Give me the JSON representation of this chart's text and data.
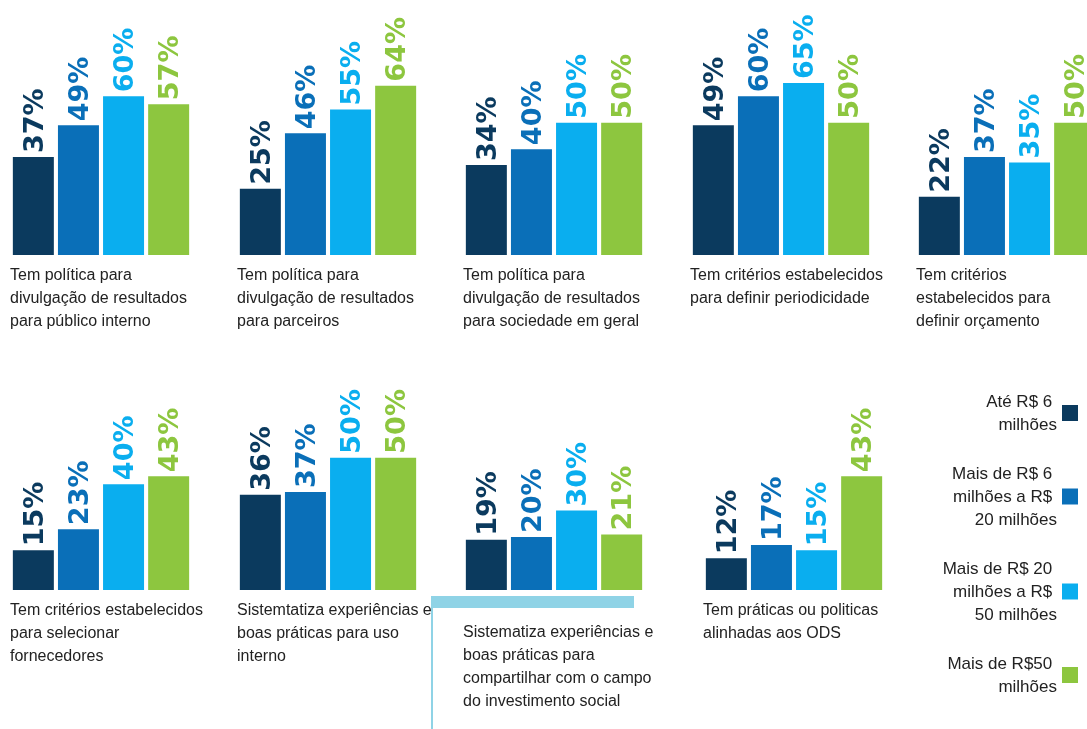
{
  "chart_data": [
    {
      "type": "bar",
      "xlabel": "Tem política para divulgação de resultados para público interno",
      "categories": [
        null
      ],
      "tick_labels": false,
      "legend": false,
      "series": [
        {
          "color": "#0b3a5e",
          "values": [
            37
          ],
          "value_labels": [
            "37%"
          ]
        },
        {
          "color": "#0a6fb8",
          "values": [
            49
          ],
          "value_labels": [
            "49%"
          ]
        },
        {
          "color": "#0aaeef",
          "values": [
            60
          ],
          "value_labels": [
            "60%"
          ]
        },
        {
          "color": "#8dc63f",
          "values": [
            57
          ],
          "value_labels": [
            "57%"
          ]
        }
      ]
    },
    {
      "type": "bar",
      "xlabel": "Tem política para divulgação de resultados para parceiros",
      "categories": [
        null
      ],
      "tick_labels": false,
      "legend": false,
      "series": [
        {
          "color": "#0b3a5e",
          "values": [
            25
          ],
          "value_labels": [
            "25%"
          ]
        },
        {
          "color": "#0a6fb8",
          "values": [
            46
          ],
          "value_labels": [
            "46%"
          ]
        },
        {
          "color": "#0aaeef",
          "values": [
            55
          ],
          "value_labels": [
            "55%"
          ]
        },
        {
          "color": "#8dc63f",
          "values": [
            64
          ],
          "value_labels": [
            "64%"
          ]
        }
      ]
    },
    {
      "type": "bar",
      "xlabel": "Tem política para divulgação de resultados para sociedade em geral",
      "categories": [
        null
      ],
      "tick_labels": false,
      "legend": false,
      "series": [
        {
          "color": "#0b3a5e",
          "values": [
            34
          ],
          "value_labels": [
            "34%"
          ]
        },
        {
          "color": "#0a6fb8",
          "values": [
            40
          ],
          "value_labels": [
            "40%"
          ]
        },
        {
          "color": "#0aaeef",
          "values": [
            50
          ],
          "value_labels": [
            "50%"
          ]
        },
        {
          "color": "#8dc63f",
          "values": [
            50
          ],
          "value_labels": [
            "50%"
          ]
        }
      ]
    },
    {
      "type": "bar",
      "xlabel": "Tem critérios estabelecidos para definir periodicidade",
      "categories": [
        null
      ],
      "tick_labels": false,
      "legend": false,
      "series": [
        {
          "color": "#0b3a5e",
          "values": [
            49
          ],
          "value_labels": [
            "49%"
          ]
        },
        {
          "color": "#0a6fb8",
          "values": [
            60
          ],
          "value_labels": [
            "60%"
          ]
        },
        {
          "color": "#0aaeef",
          "values": [
            65
          ],
          "value_labels": [
            "65%"
          ]
        },
        {
          "color": "#8dc63f",
          "values": [
            50
          ],
          "value_labels": [
            "50%"
          ]
        }
      ]
    },
    {
      "type": "bar",
      "xlabel": "Tem critérios estabelecidos para definir orçamento",
      "categories": [
        null
      ],
      "tick_labels": false,
      "legend": false,
      "series": [
        {
          "color": "#0b3a5e",
          "values": [
            22
          ],
          "value_labels": [
            "22%"
          ]
        },
        {
          "color": "#0a6fb8",
          "values": [
            37
          ],
          "value_labels": [
            "37%"
          ]
        },
        {
          "color": "#0aaeef",
          "values": [
            35
          ],
          "value_labels": [
            "35%"
          ]
        },
        {
          "color": "#8dc63f",
          "values": [
            50
          ],
          "value_labels": [
            "50%"
          ]
        }
      ]
    },
    {
      "type": "bar",
      "xlabel": "Tem critérios estabelecidos para selecionar fornecedores",
      "categories": [
        null
      ],
      "tick_labels": false,
      "legend": false,
      "series": [
        {
          "color": "#0b3a5e",
          "values": [
            15
          ],
          "value_labels": [
            "15%"
          ]
        },
        {
          "color": "#0a6fb8",
          "values": [
            23
          ],
          "value_labels": [
            "23%"
          ]
        },
        {
          "color": "#0aaeef",
          "values": [
            40
          ],
          "value_labels": [
            "40%"
          ]
        },
        {
          "color": "#8dc63f",
          "values": [
            43
          ],
          "value_labels": [
            "43%"
          ]
        }
      ]
    },
    {
      "type": "bar",
      "xlabel": "Sistemtatiza experiências e boas práticas para uso interno",
      "categories": [
        null
      ],
      "tick_labels": false,
      "legend": false,
      "series": [
        {
          "color": "#0b3a5e",
          "values": [
            36
          ],
          "value_labels": [
            "36%"
          ]
        },
        {
          "color": "#0a6fb8",
          "values": [
            37
          ],
          "value_labels": [
            "37%"
          ]
        },
        {
          "color": "#0aaeef",
          "values": [
            50
          ],
          "value_labels": [
            "50%"
          ]
        },
        {
          "color": "#8dc63f",
          "values": [
            50
          ],
          "value_labels": [
            "50%"
          ]
        }
      ]
    },
    {
      "type": "bar",
      "xlabel": "Sistematiza experiências e boas práticas para compartilhar com o campo do investimento social",
      "categories": [
        null
      ],
      "tick_labels": false,
      "legend": false,
      "series": [
        {
          "color": "#0b3a5e",
          "values": [
            19
          ],
          "value_labels": [
            "19%"
          ]
        },
        {
          "color": "#0a6fb8",
          "values": [
            20
          ],
          "value_labels": [
            "20%"
          ]
        },
        {
          "color": "#0aaeef",
          "values": [
            30
          ],
          "value_labels": [
            "30%"
          ]
        },
        {
          "color": "#8dc63f",
          "values": [
            21
          ],
          "value_labels": [
            "21%"
          ]
        }
      ]
    },
    {
      "type": "bar",
      "xlabel": "Tem práticas ou politicas alinhadas aos ODS",
      "categories": [
        null
      ],
      "tick_labels": false,
      "legend": "right",
      "series": [
        {
          "name": "Até R$ 6 milhões",
          "color": "#0b3a5e",
          "values": [
            12
          ],
          "value_labels": [
            "12%"
          ]
        },
        {
          "name": "Mais de R$ 6 milhões a R$ 20 milhões",
          "color": "#0a6fb8",
          "values": [
            17
          ],
          "value_labels": [
            "17%"
          ]
        },
        {
          "name": "Mais de R$ 20 milhões a R$ 50 milhões",
          "color": "#0aaeef",
          "values": [
            15
          ],
          "value_labels": [
            "15%"
          ]
        },
        {
          "name": "Mais de R$50 milhões",
          "color": "#8dc63f",
          "values": [
            43
          ],
          "value_labels": [
            "43%"
          ]
        }
      ]
    }
  ]
}
